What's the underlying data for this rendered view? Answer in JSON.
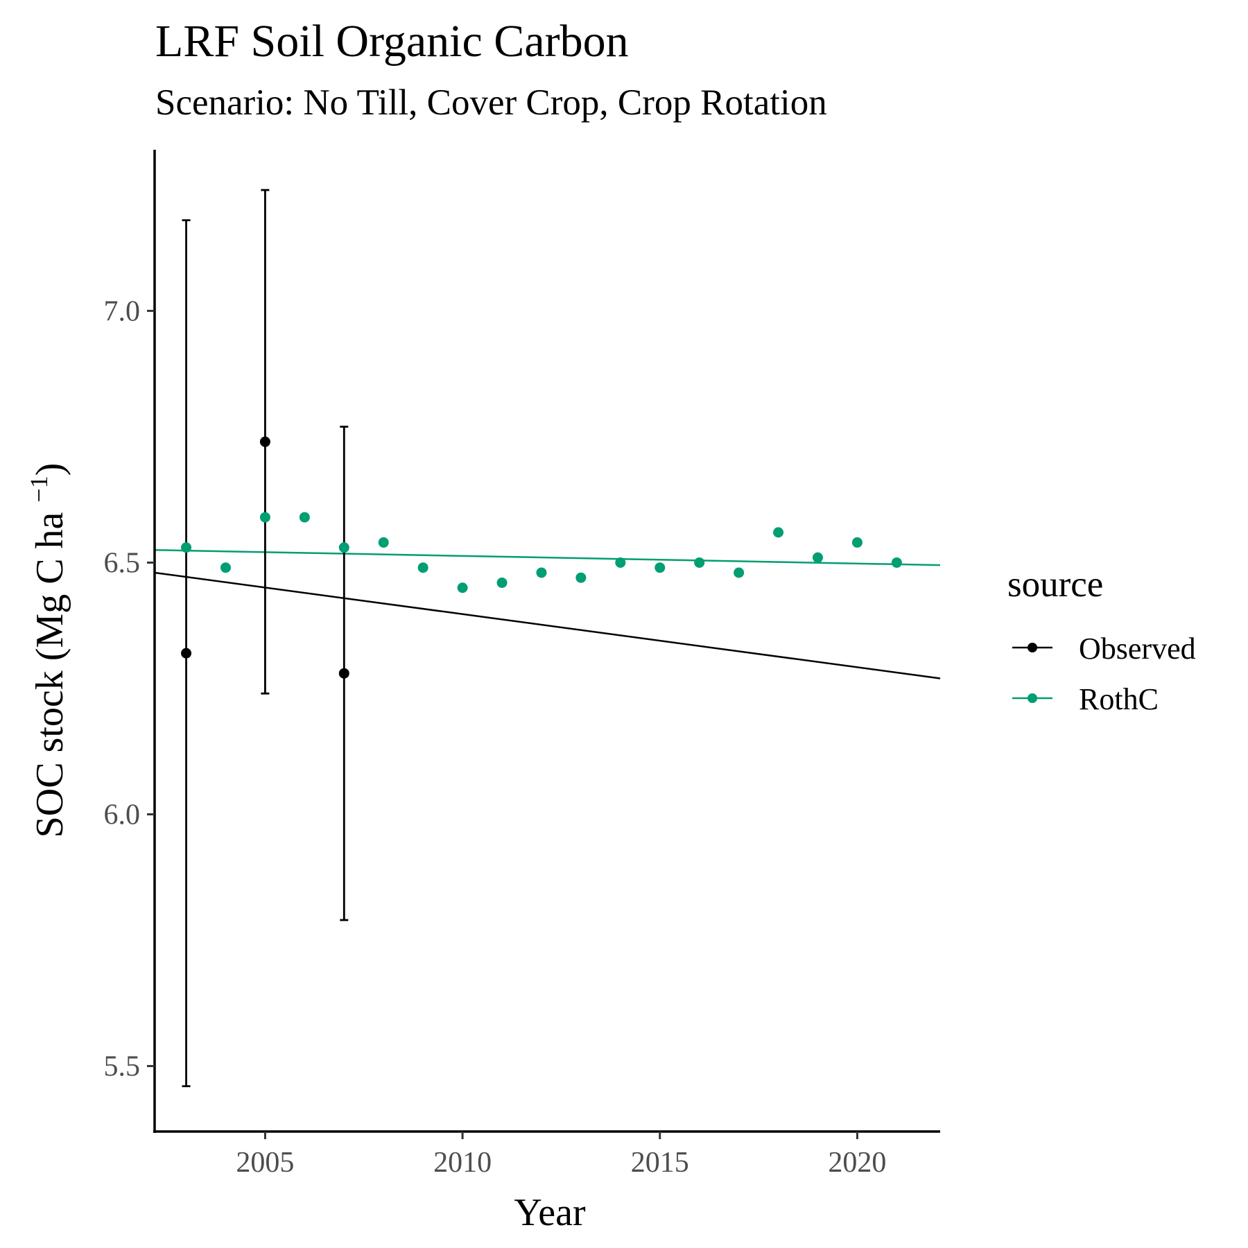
{
  "title": "LRF Soil Organic Carbon",
  "subtitle": "Scenario: No Till, Cover Crop, Crop Rotation",
  "chart_data": {
    "type": "scatter",
    "xlabel": "Year",
    "ylabel": "SOC stock (Mg C ha ",
    "ylabel_superscript": "−1",
    "ylabel_suffix": ")",
    "xlim": [
      2002.2,
      2022.1
    ],
    "ylim": [
      5.37,
      7.32
    ],
    "x_ticks": [
      2005,
      2010,
      2015,
      2020
    ],
    "y_ticks": [
      5.5,
      6.0,
      6.5,
      7.0
    ],
    "y_tick_labels": [
      "5.5",
      "6.0",
      "6.5",
      "7.0"
    ],
    "grid": false,
    "legend": {
      "title": "source",
      "position": "right",
      "entries": [
        {
          "label": "Observed",
          "color": "#000000"
        },
        {
          "label": "RothC",
          "color": "#009E73"
        }
      ]
    },
    "series": [
      {
        "name": "Observed",
        "color": "#000000",
        "points": [
          {
            "x": 2003,
            "y": 6.32,
            "ymin": 5.46,
            "ymax": 7.18
          },
          {
            "x": 2005,
            "y": 6.74,
            "ymin": 6.24,
            "ymax": 7.24
          },
          {
            "x": 2007,
            "y": 6.28,
            "ymin": 5.79,
            "ymax": 6.77
          }
        ],
        "trend": {
          "x": [
            2002.2,
            2022.1
          ],
          "y": [
            6.48,
            6.27
          ]
        }
      },
      {
        "name": "RothC",
        "color": "#009E73",
        "points": [
          {
            "x": 2003,
            "y": 6.53
          },
          {
            "x": 2004,
            "y": 6.49
          },
          {
            "x": 2005,
            "y": 6.59
          },
          {
            "x": 2006,
            "y": 6.59
          },
          {
            "x": 2007,
            "y": 6.53
          },
          {
            "x": 2008,
            "y": 6.54
          },
          {
            "x": 2009,
            "y": 6.49
          },
          {
            "x": 2010,
            "y": 6.45
          },
          {
            "x": 2011,
            "y": 6.46
          },
          {
            "x": 2012,
            "y": 6.48
          },
          {
            "x": 2013,
            "y": 6.47
          },
          {
            "x": 2014,
            "y": 6.5
          },
          {
            "x": 2015,
            "y": 6.49
          },
          {
            "x": 2016,
            "y": 6.5
          },
          {
            "x": 2017,
            "y": 6.48
          },
          {
            "x": 2018,
            "y": 6.56
          },
          {
            "x": 2019,
            "y": 6.51
          },
          {
            "x": 2020,
            "y": 6.54
          },
          {
            "x": 2021,
            "y": 6.5
          }
        ],
        "trend": {
          "x": [
            2002.2,
            2022.1
          ],
          "y": [
            6.525,
            6.495
          ]
        }
      }
    ]
  }
}
